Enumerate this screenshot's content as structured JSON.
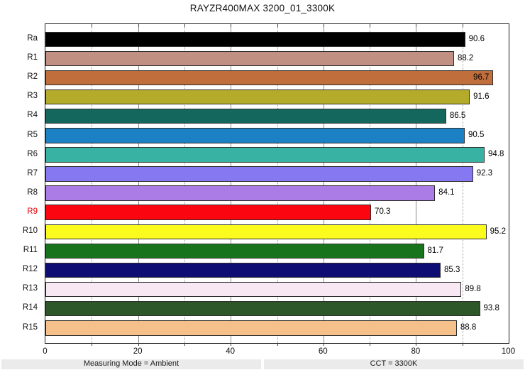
{
  "chart_data": {
    "type": "bar",
    "orientation": "horizontal",
    "title": "RAYZR400MAX 3200_01_3300K",
    "xlabel": "",
    "ylabel": "",
    "xlim": [
      0,
      100
    ],
    "x_major_ticks": [
      0,
      20,
      40,
      60,
      80,
      100
    ],
    "x_minor_ticks": [
      10,
      30,
      50,
      70,
      90
    ],
    "grid": {
      "major": "solid-vertical",
      "minor": "dotted-vertical"
    },
    "legend": "none",
    "rows": [
      {
        "label": "Ra",
        "value": 90.6,
        "color": "#000000"
      },
      {
        "label": "R1",
        "value": 88.2,
        "color": "#c09182"
      },
      {
        "label": "R2",
        "value": 96.7,
        "color": "#c06f3c",
        "value_inside": true
      },
      {
        "label": "R3",
        "value": 91.6,
        "color": "#b3ab29"
      },
      {
        "label": "R4",
        "value": 86.5,
        "color": "#14675c"
      },
      {
        "label": "R5",
        "value": 90.5,
        "color": "#1b80c4"
      },
      {
        "label": "R6",
        "value": 94.8,
        "color": "#38b2a2"
      },
      {
        "label": "R7",
        "value": 92.3,
        "color": "#8678f0"
      },
      {
        "label": "R8",
        "value": 84.1,
        "color": "#ab7ce6"
      },
      {
        "label": "R9",
        "value": 70.3,
        "color": "#fb0511",
        "label_color": "#e8000b"
      },
      {
        "label": "R10",
        "value": 95.2,
        "color": "#fbfb1d"
      },
      {
        "label": "R11",
        "value": 81.7,
        "color": "#17731c"
      },
      {
        "label": "R12",
        "value": 85.3,
        "color": "#0d0d73"
      },
      {
        "label": "R13",
        "value": 89.8,
        "color": "#f8e8f4"
      },
      {
        "label": "R14",
        "value": 93.8,
        "color": "#2d5728"
      },
      {
        "label": "R15",
        "value": 88.8,
        "color": "#f5c089"
      }
    ]
  },
  "footer": {
    "measuring_mode": "Measuring Mode = Ambient",
    "cct": "CCT = 3300K"
  },
  "colors": {
    "background": "#ffffff",
    "plot_border": "#1a1a1a",
    "bar_border": "#2e2e2e",
    "grid_major": "#8c8c8c",
    "grid_minor": "#999999",
    "tick": "#444444",
    "text": "#111111",
    "value_text": "#000000",
    "footer_bg": "#ebebeb",
    "footer_text": "#1a1a1a"
  }
}
